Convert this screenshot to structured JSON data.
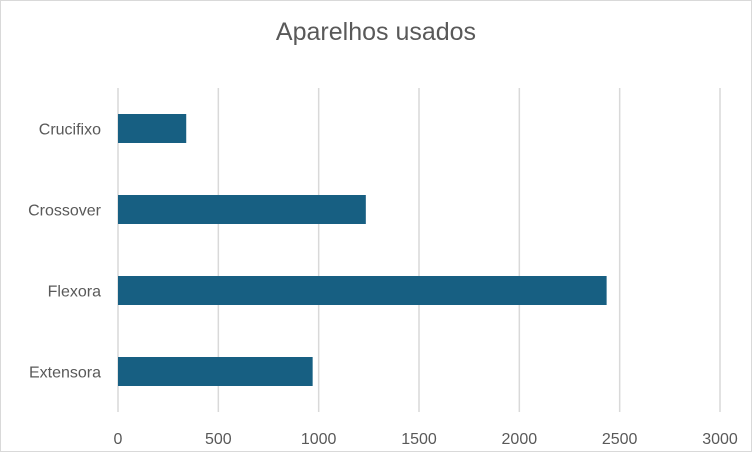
{
  "chart_data": {
    "type": "bar",
    "orientation": "horizontal",
    "title": "Aparelhos usados",
    "categories": [
      "Crucifixo",
      "Crossover",
      "Flexora",
      "Extensora"
    ],
    "values": [
      340,
      1235,
      2435,
      970
    ],
    "xlim": [
      0,
      3000
    ],
    "x_ticks": [
      0,
      500,
      1000,
      1500,
      2000,
      2500,
      3000
    ],
    "grid": true,
    "legend": "none",
    "bar_color": "#175f82",
    "grid_color": "#d9d9d9"
  }
}
